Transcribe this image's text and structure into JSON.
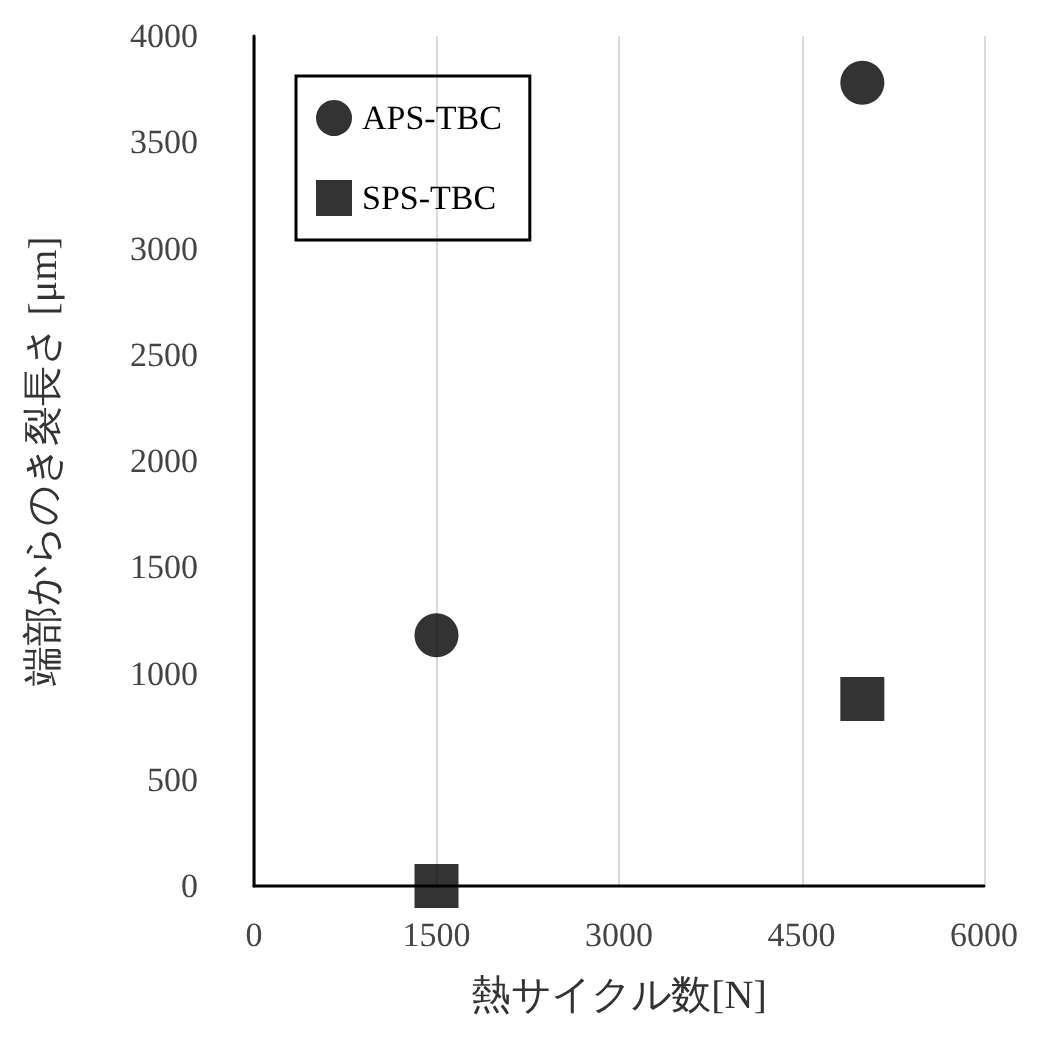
{
  "chart_data": {
    "type": "scatter",
    "xlabel": "熱サイクル数[N]",
    "ylabel": "端部からのき裂長さ [μm]",
    "xlim": [
      0,
      6000
    ],
    "xticks": [
      0,
      1500,
      3000,
      4500,
      6000
    ],
    "ylim": [
      0,
      4000
    ],
    "yticks": [
      0,
      500,
      1000,
      1500,
      2000,
      2500,
      3000,
      3500,
      4000
    ],
    "grid": "x",
    "legend": "top left",
    "x": [
      1500,
      5000
    ],
    "series": [
      {
        "name": "APS-TBC",
        "color": "#000000",
        "marker": "circle",
        "values": [
          1180,
          3780
        ]
      },
      {
        "name": "SPS-TBC",
        "color": "#000000",
        "marker": "square",
        "values": [
          0,
          880
        ]
      }
    ]
  }
}
